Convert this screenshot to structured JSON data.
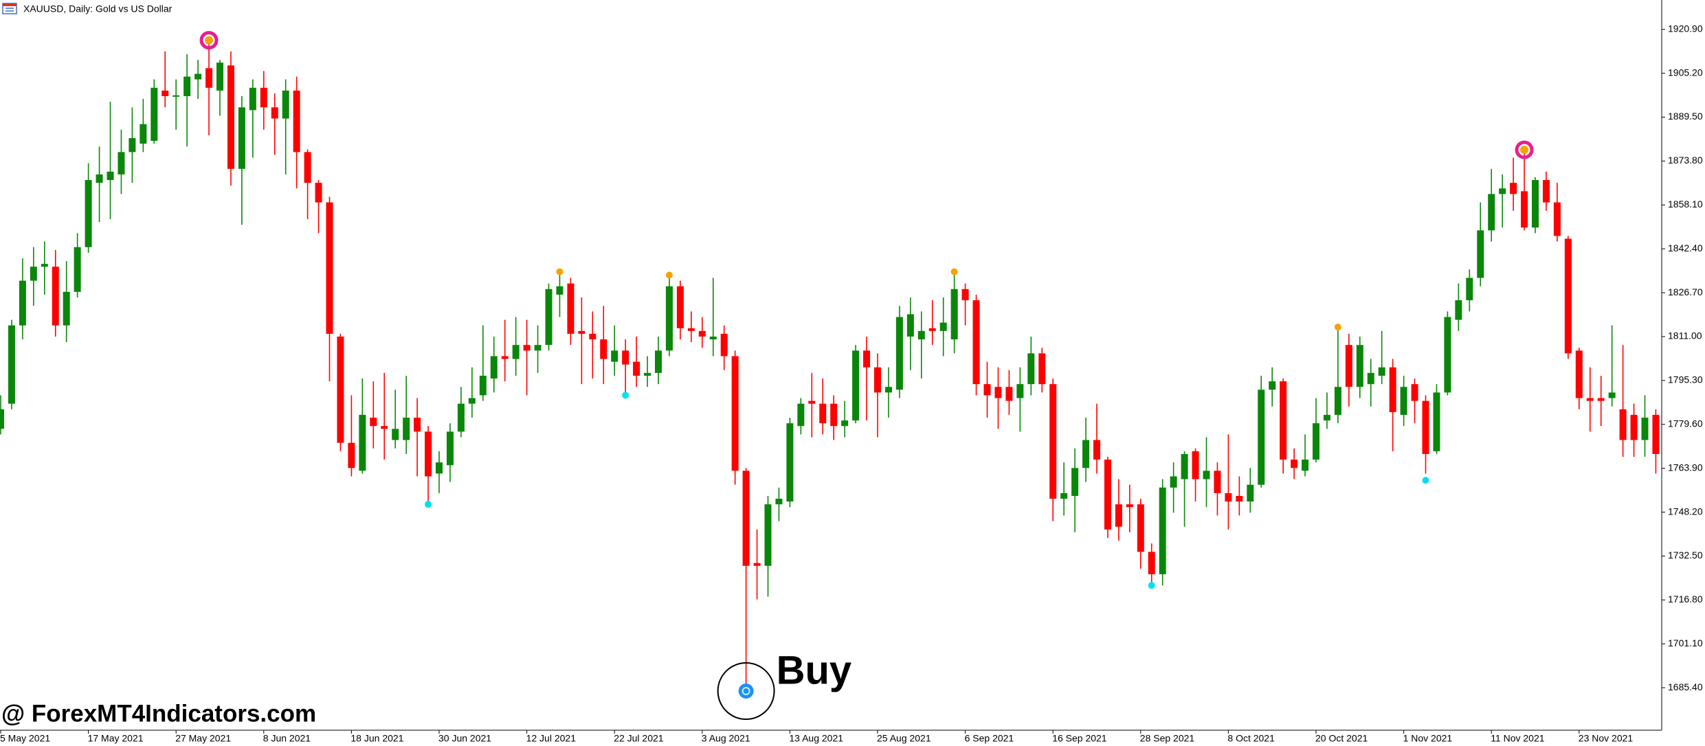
{
  "chart_data": {
    "type": "candlestick",
    "title": "XAUUSD, Daily:  Gold vs US Dollar",
    "categories": [
      "5 May 2021",
      null,
      null,
      null,
      null,
      null,
      null,
      null,
      "17 May 2021",
      null,
      null,
      null,
      null,
      null,
      null,
      null,
      "27 May 2021",
      null,
      null,
      null,
      null,
      null,
      null,
      null,
      "8 Jun 2021",
      null,
      null,
      null,
      null,
      null,
      null,
      null,
      "18 Jun 2021",
      null,
      null,
      null,
      null,
      null,
      null,
      null,
      "30 Jun 2021",
      null,
      null,
      null,
      null,
      null,
      null,
      null,
      "12 Jul 2021",
      null,
      null,
      null,
      null,
      null,
      null,
      null,
      "22 Jul 2021",
      null,
      null,
      null,
      null,
      null,
      null,
      null,
      "3 Aug 2021",
      null,
      null,
      null,
      null,
      null,
      null,
      null,
      "13 Aug 2021",
      null,
      null,
      null,
      null,
      null,
      null,
      null,
      "25 Aug 2021",
      null,
      null,
      null,
      null,
      null,
      null,
      null,
      "6 Sep 2021",
      null,
      null,
      null,
      null,
      null,
      null,
      null,
      "16 Sep 2021",
      null,
      null,
      null,
      null,
      null,
      null,
      null,
      "28 Sep 2021",
      null,
      null,
      null,
      null,
      null,
      null,
      null,
      "8 Oct 2021",
      null,
      null,
      null,
      null,
      null,
      null,
      null,
      "20 Oct 2021",
      null,
      null,
      null,
      null,
      null,
      null,
      null,
      "1 Nov 2021",
      null,
      null,
      null,
      null,
      null,
      null,
      null,
      "11 Nov 2021",
      null,
      null,
      null,
      null,
      null,
      null,
      null,
      "23 Nov 2021",
      null,
      null,
      null,
      null,
      null,
      null,
      null
    ],
    "open": [
      1778,
      1787,
      1815,
      1831,
      1836,
      1836,
      1815,
      1827,
      1843,
      1866,
      1867,
      1869,
      1877,
      1880,
      1881,
      1899,
      1896.8,
      1897,
      1903,
      1907,
      1899,
      1908,
      1871,
      1892,
      1900,
      1893,
      1889,
      1899,
      1877,
      1866,
      1859,
      1811,
      1773,
      1763,
      1782,
      1779,
      1774,
      1774,
      1782,
      1777,
      1762,
      1765,
      1777,
      1787,
      1790,
      1796,
      1804,
      1803,
      1808,
      1806,
      1808,
      1826,
      1830,
      1813,
      1812,
      1810,
      1802,
      1806,
      1802,
      1797,
      1798,
      1806,
      1829,
      1814,
      1813,
      1810,
      1812,
      1804,
      1763,
      1730,
      1729,
      1751,
      1752,
      1779,
      1788,
      1787,
      1787,
      1779,
      1781,
      1806,
      1800,
      1791,
      1792,
      1811,
      1810,
      1814,
      1813,
      1810,
      1828,
      1824,
      1794,
      1793,
      1793,
      1789,
      1794,
      1805,
      1794,
      1753,
      1754,
      1764,
      1774,
      1767,
      1751,
      1751,
      1751,
      1734,
      1726,
      1757,
      1760,
      1770,
      1760,
      1763,
      1755,
      1754,
      1752,
      1758,
      1792,
      1795,
      1767,
      1763,
      1767,
      1781,
      1783,
      1808,
      1793,
      1794,
      1797,
      1800,
      1783,
      1794,
      1788,
      1770,
      1791,
      1817,
      1824,
      1832,
      1849,
      1862,
      1866,
      1863,
      1850,
      1867,
      1859,
      1846,
      1806,
      1789,
      1789,
      1789,
      1785,
      1783,
      1774,
      1783
    ],
    "high": [
      1790,
      1817,
      1839,
      1843,
      1845,
      1842,
      1838,
      1848,
      1873,
      1879,
      1895,
      1885,
      1893,
      1896,
      1903,
      1913,
      1903,
      1912,
      1910,
      1916,
      1910,
      1913,
      1897,
      1903,
      1906,
      1898,
      1903,
      1904,
      1878,
      1867,
      1861,
      1812,
      1790,
      1796,
      1795,
      1798,
      1792,
      1797,
      1789,
      1779,
      1770,
      1780,
      1793,
      1800,
      1815,
      1811,
      1817,
      1818,
      1817,
      1815,
      1830,
      1834,
      1832,
      1825,
      1820,
      1822,
      1815,
      1810,
      1811,
      1804,
      1811,
      1833,
      1831,
      1820,
      1818,
      1832,
      1815,
      1806,
      1764,
      1742,
      1754,
      1757,
      1782,
      1789,
      1798,
      1796,
      1790,
      1788,
      1808,
      1811,
      1805,
      1800,
      1822,
      1825,
      1820,
      1824,
      1825,
      1834,
      1830,
      1826,
      1802,
      1800,
      1799,
      1800,
      1811,
      1807,
      1796,
      1766,
      1771,
      1782,
      1787,
      1768,
      1760,
      1758,
      1753,
      1737,
      1760,
      1766,
      1770,
      1771,
      1775,
      1766,
      1776,
      1761,
      1764,
      1797,
      1800,
      1796,
      1771,
      1776,
      1789,
      1791,
      1814,
      1812,
      1811,
      1803,
      1813,
      1803,
      1797,
      1796,
      1790,
      1794,
      1820,
      1830,
      1835,
      1859,
      1871,
      1869,
      1875,
      1879,
      1868,
      1870,
      1866,
      1847,
      1807,
      1800,
      1797,
      1815,
      1808,
      1787,
      1790,
      1785
    ],
    "low": [
      1776,
      1785,
      1810,
      1822,
      1826,
      1811,
      1809,
      1825,
      1841,
      1852,
      1853,
      1862,
      1866,
      1877,
      1880,
      1893,
      1885,
      1879,
      1896,
      1883,
      1890,
      1865,
      1851,
      1875,
      1885,
      1876,
      1869,
      1864,
      1853,
      1848,
      1795,
      1770,
      1761,
      1762,
      1771,
      1767,
      1771,
      1769,
      1761,
      1752,
      1755,
      1759,
      1775,
      1782,
      1788,
      1791,
      1795,
      1797,
      1790,
      1798,
      1806,
      1818,
      1808,
      1794,
      1796,
      1794,
      1797,
      1790,
      1793,
      1793,
      1794,
      1804,
      1810,
      1809,
      1807,
      1804,
      1799,
      1758,
      1686,
      1717,
      1718,
      1745,
      1750,
      1776,
      1775,
      1776,
      1774,
      1775,
      1780,
      1781,
      1775,
      1782,
      1789,
      1799,
      1796,
      1808,
      1804,
      1805,
      1815,
      1790,
      1782,
      1778,
      1783,
      1777,
      1790,
      1791,
      1745,
      1747,
      1741,
      1759,
      1762,
      1739,
      1738,
      1741,
      1728,
      1721,
      1722,
      1748,
      1743,
      1752,
      1750,
      1747,
      1742,
      1747,
      1748,
      1757,
      1786,
      1762,
      1760,
      1761,
      1766,
      1778,
      1780,
      1786,
      1789,
      1786,
      1794,
      1770,
      1779,
      1780,
      1762,
      1769,
      1790,
      1813,
      1820,
      1829,
      1845,
      1850,
      1856,
      1849,
      1848,
      1856,
      1845,
      1803,
      1785,
      1777,
      1779,
      1786,
      1768,
      1768,
      1768,
      1762
    ],
    "close": [
      1785,
      1815,
      1831,
      1836,
      1837,
      1815,
      1827,
      1843,
      1867,
      1869,
      1870,
      1877,
      1882,
      1887,
      1900,
      1897,
      1897.3,
      1904,
      1905,
      1900,
      1909,
      1871,
      1893,
      1900,
      1893,
      1889,
      1899,
      1877,
      1866,
      1859,
      1812,
      1773,
      1764,
      1783,
      1779,
      1778,
      1778,
      1782,
      1777,
      1761,
      1766,
      1777,
      1787,
      1789,
      1797,
      1804,
      1803,
      1808,
      1806,
      1808,
      1828,
      1829,
      1812,
      1812,
      1810,
      1803,
      1806,
      1801,
      1797,
      1798,
      1806,
      1829,
      1814,
      1813,
      1811,
      1811,
      1804,
      1763,
      1729,
      1729,
      1751,
      1753,
      1780,
      1787,
      1787,
      1780,
      1779,
      1781,
      1806,
      1800,
      1791,
      1793,
      1818,
      1819,
      1813,
      1813,
      1816,
      1828,
      1824,
      1794,
      1790,
      1789,
      1788,
      1794,
      1805,
      1794,
      1753,
      1755,
      1764,
      1774,
      1767,
      1742,
      1743,
      1750,
      1734,
      1726,
      1757,
      1761,
      1769,
      1760,
      1763,
      1755,
      1752,
      1752,
      1758,
      1792,
      1795,
      1767,
      1764,
      1767,
      1780,
      1783,
      1793,
      1793,
      1808,
      1798,
      1800,
      1784,
      1793,
      1788,
      1769,
      1791,
      1818,
      1824,
      1832,
      1849,
      1862,
      1864,
      1862,
      1850,
      1867,
      1859,
      1847,
      1805,
      1789,
      1788,
      1788,
      1791,
      1774,
      1774,
      1782,
      1769
    ],
    "up_color": "#0a870a",
    "down_color": "#ff0000",
    "high_markers": [
      {
        "index": 19,
        "value": 1917,
        "highlight": true
      },
      {
        "index": 51,
        "value": 1834.2
      },
      {
        "index": 61,
        "value": 1833
      },
      {
        "index": 87,
        "value": 1834.2
      },
      {
        "index": 122,
        "value": 1814.4
      },
      {
        "index": 139,
        "value": 1877.8,
        "highlight": true
      }
    ],
    "low_markers": [
      {
        "index": 39,
        "value": 1751
      },
      {
        "index": 57,
        "value": 1790
      },
      {
        "index": 68,
        "value": 1684.2,
        "highlight": true
      },
      {
        "index": 105,
        "value": 1722
      },
      {
        "index": 130,
        "value": 1759.6
      }
    ],
    "high_marker_color": "#f5a300",
    "high_highlight_color": "#e6208f",
    "low_marker_color": "#00e1f0",
    "low_highlight_color": "#1e8fff",
    "annotation": "Buy",
    "watermark": "@ ForexMT4Indicators.com",
    "ylim": [
      1670.2,
      1931.4
    ],
    "yticks": [
      {
        "value": 1920.9,
        "label": "1920.90"
      },
      {
        "value": 1905.2,
        "label": "1905.20"
      },
      {
        "value": 1889.5,
        "label": "1889.50"
      },
      {
        "value": 1873.8,
        "label": "1873.80"
      },
      {
        "value": 1858.1,
        "label": "1858.10"
      },
      {
        "value": 1842.4,
        "label": "1842.40"
      },
      {
        "value": 1826.7,
        "label": "1826.70"
      },
      {
        "value": 1811,
        "label": "1811.00"
      },
      {
        "value": 1795.3,
        "label": "1795.30"
      },
      {
        "value": 1779.6,
        "label": "1779.60"
      },
      {
        "value": 1763.9,
        "label": "1763.90"
      },
      {
        "value": 1748.2,
        "label": "1748.20"
      },
      {
        "value": 1732.5,
        "label": "1732.50"
      },
      {
        "value": 1716.8,
        "label": "1716.80"
      },
      {
        "value": 1701.1,
        "label": "1701.10"
      },
      {
        "value": 1685.4,
        "label": "1685.40"
      }
    ]
  }
}
